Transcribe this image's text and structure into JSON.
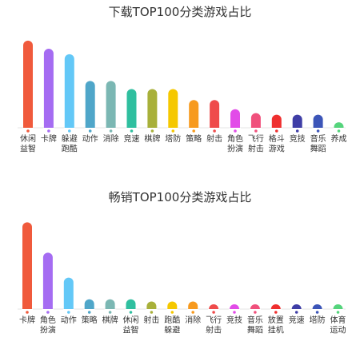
{
  "chart_data": [
    {
      "type": "bar",
      "title": "下载TOP100分类游戏占比",
      "categories": [
        "休闲益智",
        "卡牌",
        "躲避跑酷",
        "动作",
        "消除",
        "竞速",
        "棋牌",
        "塔防",
        "策略",
        "射击",
        "角色扮演",
        "飞行射击",
        "格斗游戏",
        "竞技",
        "音乐舞蹈",
        "养成"
      ],
      "tick_lines": [
        [
          "休闲",
          "益智"
        ],
        [
          "卡牌"
        ],
        [
          "躲避",
          "跑酷"
        ],
        [
          "动作"
        ],
        [
          "消除"
        ],
        [
          "竞速"
        ],
        [
          "棋牌"
        ],
        [
          "塔防"
        ],
        [
          "策略"
        ],
        [
          "射击"
        ],
        [
          "角色",
          "扮演"
        ],
        [
          "飞行",
          "射击"
        ],
        [
          "格斗",
          "游戏"
        ],
        [
          "竞技"
        ],
        [
          "音乐",
          "舞蹈"
        ],
        [
          "养成"
        ]
      ],
      "values": [
        16,
        14.5,
        13.5,
        8.6,
        8.6,
        7.1,
        7.1,
        7.1,
        5.1,
        5.1,
        3.4,
        2.7,
        2.4,
        2.4,
        2.4,
        1
      ],
      "colors": [
        "#f05a3c",
        "#a56cf2",
        "#63c8f7",
        "#4fa6c9",
        "#7bb7b3",
        "#2fbf9f",
        "#a8b03a",
        "#f5c800",
        "#f79a1e",
        "#ef4b4b",
        "#e24ce8",
        "#f0507c",
        "#ef2f2f",
        "#3f3ea6",
        "#3c55b8",
        "#55d47c"
      ],
      "ylim": [
        0,
        17
      ]
    },
    {
      "type": "bar",
      "title": "畅销TOP100分类游戏占比",
      "categories": [
        "卡牌",
        "角色扮演",
        "动作",
        "策略",
        "棋牌",
        "休闲益智",
        "射击",
        "跑酷躲避",
        "消除",
        "飞行射击",
        "竞技",
        "音乐舞蹈",
        "放置挂机",
        "竞速",
        "塔防",
        "体育运动"
      ],
      "tick_lines": [
        [
          "卡牌"
        ],
        [
          "角色",
          "扮演"
        ],
        [
          "动作"
        ],
        [
          "策略"
        ],
        [
          "棋牌"
        ],
        [
          "休闲",
          "益智"
        ],
        [
          "射击"
        ],
        [
          "跑酷",
          "躲避"
        ],
        [
          "消除"
        ],
        [
          "飞行",
          "射击"
        ],
        [
          "竞技"
        ],
        [
          "音乐",
          "舞蹈"
        ],
        [
          "放置",
          "挂机"
        ],
        [
          "竞速"
        ],
        [
          "塔防"
        ],
        [
          "体育",
          "运动"
        ]
      ],
      "values": [
        40,
        26,
        14.5,
        4.5,
        4.5,
        4.5,
        3.5,
        3.5,
        3.5,
        2.2,
        2.2,
        2.2,
        1.6,
        1.6,
        1.6,
        1.6
      ],
      "colors": [
        "#f05a3c",
        "#a56cf2",
        "#63c8f7",
        "#4fa6c9",
        "#7bb7b3",
        "#2fbf9f",
        "#a8b03a",
        "#f5c800",
        "#f79a1e",
        "#ef4b4b",
        "#e24ce8",
        "#f0507c",
        "#ef2f2f",
        "#3f3ea6",
        "#3c55b8",
        "#55d47c"
      ],
      "ylim": [
        0,
        42
      ]
    }
  ]
}
